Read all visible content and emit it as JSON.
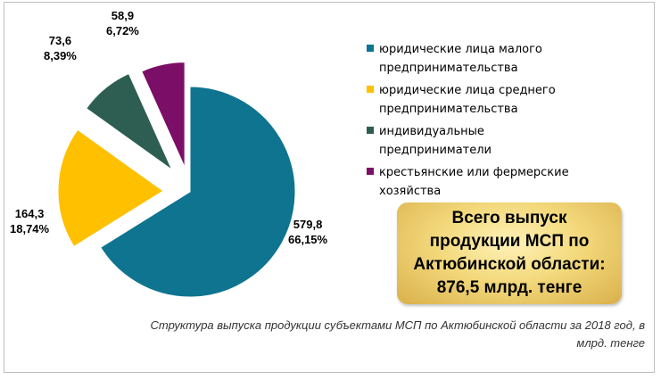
{
  "chart_data": {
    "type": "pie",
    "categories": [
      "юридические лица малого предпринимательства",
      "юридические лица среднего предпринимательства",
      "индивидуальные предприниматели",
      "крестьянские или фермерские хозяйства"
    ],
    "values": [
      579.8,
      164.3,
      73.6,
      58.9
    ],
    "percent_labels": [
      "66,15%",
      "18,74%",
      "8,39%",
      "6,72%"
    ],
    "value_labels": [
      "579,8",
      "164,3",
      "73,6",
      "58,9"
    ],
    "colors": [
      "#0e7490",
      "#ffc000",
      "#2e5e52",
      "#7b0e66"
    ],
    "exploded": true,
    "legend_position": "right"
  },
  "legend": {
    "items": [
      {
        "line1": "юридические лица малого",
        "line2": "предпринимательства",
        "color": "#0e7490"
      },
      {
        "line1": "юридические лица среднего",
        "line2": "предпринимательства",
        "color": "#ffc000"
      },
      {
        "line1": "индивидуальные",
        "line2": "предприниматели",
        "color": "#2e5e52"
      },
      {
        "line1": "крестьянские или фермерские",
        "line2": "хозяйства",
        "color": "#7b0e66"
      }
    ]
  },
  "total_box": {
    "line1": "Всего выпуск",
    "line2": "продукции МСП по",
    "line3": "Актюбинской области:",
    "line4": "876,5 млрд. тенге"
  },
  "caption": {
    "line1": "Структура выпуска продукции субъектами МСП по Актюбинской области за 2018 год, в",
    "line2": "млрд. тенге"
  }
}
